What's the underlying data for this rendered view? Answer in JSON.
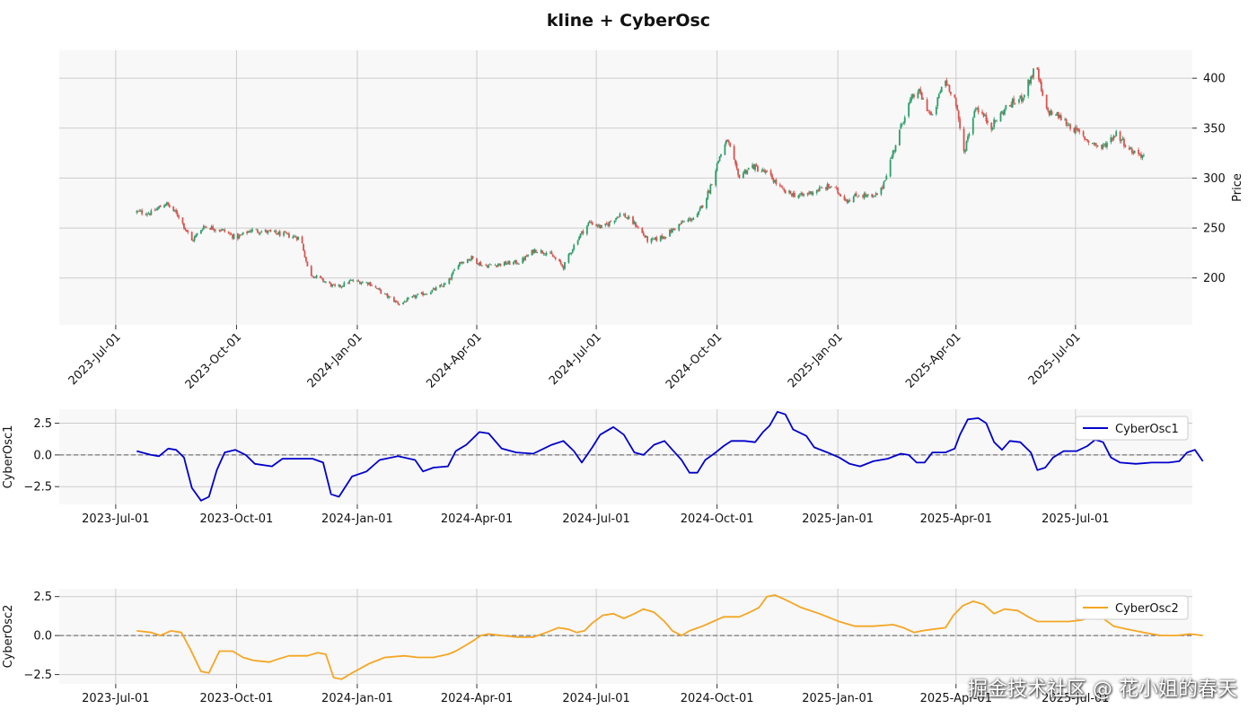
{
  "figure": {
    "title": "kline + CyberOsc",
    "watermark": "掘金技术社区 @ 花小姐的春天"
  },
  "colors": {
    "up": "#2e9e6b",
    "down": "#d9534f",
    "osc1": "#0000cc",
    "osc2": "#f5a623",
    "panel_bg": "#f8f8f8",
    "grid": "#cccccc",
    "zero_line": "#777777"
  },
  "chart_data": [
    {
      "type": "candlestick",
      "panel": "price",
      "ylabel": "Price",
      "ylim": [
        153,
        428
      ],
      "yticks": [
        200,
        250,
        300,
        350,
        400
      ],
      "xlim": [
        "2023-05-19",
        "2025-09-28"
      ],
      "xticks": [
        "2023-Jul-01",
        "2023-Oct-01",
        "2024-Jan-01",
        "2024-Apr-01",
        "2024-Jul-01",
        "2024-Oct-01",
        "2025-Jan-01",
        "2025-Apr-01",
        "2025-Jul-01"
      ],
      "start_date": "2023-07-17",
      "end_date": "2025-08-22",
      "close_anchors": [
        [
          "2023-07-17",
          266
        ],
        [
          "2023-07-28",
          265
        ],
        [
          "2023-08-08",
          275
        ],
        [
          "2023-08-18",
          262
        ],
        [
          "2023-08-28",
          237
        ],
        [
          "2023-09-06",
          252
        ],
        [
          "2023-09-20",
          248
        ],
        [
          "2023-10-01",
          240
        ],
        [
          "2023-10-12",
          248
        ],
        [
          "2023-10-25",
          246
        ],
        [
          "2023-11-08",
          243
        ],
        [
          "2023-11-19",
          240
        ],
        [
          "2023-11-25",
          205
        ],
        [
          "2023-12-05",
          198
        ],
        [
          "2023-12-16",
          190
        ],
        [
          "2023-12-27",
          197
        ],
        [
          "2024-01-10",
          195
        ],
        [
          "2024-01-22",
          183
        ],
        [
          "2024-02-02",
          174
        ],
        [
          "2024-02-15",
          182
        ],
        [
          "2024-02-25",
          186
        ],
        [
          "2024-03-10",
          195
        ],
        [
          "2024-03-18",
          215
        ],
        [
          "2024-03-28",
          220
        ],
        [
          "2024-04-06",
          212
        ],
        [
          "2024-04-20",
          214
        ],
        [
          "2024-05-04",
          216
        ],
        [
          "2024-05-15",
          228
        ],
        [
          "2024-05-26",
          225
        ],
        [
          "2024-06-06",
          211
        ],
        [
          "2024-06-16",
          238
        ],
        [
          "2024-06-26",
          256
        ],
        [
          "2024-07-06",
          250
        ],
        [
          "2024-07-20",
          265
        ],
        [
          "2024-08-01",
          252
        ],
        [
          "2024-08-10",
          236
        ],
        [
          "2024-08-22",
          242
        ],
        [
          "2024-09-04",
          255
        ],
        [
          "2024-09-16",
          262
        ],
        [
          "2024-09-25",
          288
        ],
        [
          "2024-10-03",
          322
        ],
        [
          "2024-10-09",
          338
        ],
        [
          "2024-10-17",
          302
        ],
        [
          "2024-10-28",
          312
        ],
        [
          "2024-11-09",
          304
        ],
        [
          "2024-11-21",
          286
        ],
        [
          "2024-12-04",
          282
        ],
        [
          "2024-12-16",
          288
        ],
        [
          "2024-12-27",
          292
        ],
        [
          "2025-01-08",
          278
        ],
        [
          "2025-01-18",
          284
        ],
        [
          "2025-01-28",
          280
        ],
        [
          "2025-02-03",
          288
        ],
        [
          "2025-02-13",
          330
        ],
        [
          "2025-02-23",
          372
        ],
        [
          "2025-03-03",
          388
        ],
        [
          "2025-03-14",
          360
        ],
        [
          "2025-03-23",
          400
        ],
        [
          "2025-03-31",
          380
        ],
        [
          "2025-04-07",
          326
        ],
        [
          "2025-04-16",
          372
        ],
        [
          "2025-04-28",
          352
        ],
        [
          "2025-05-10",
          372
        ],
        [
          "2025-05-21",
          380
        ],
        [
          "2025-06-01",
          412
        ],
        [
          "2025-06-08",
          368
        ],
        [
          "2025-06-18",
          362
        ],
        [
          "2025-06-29",
          350
        ],
        [
          "2025-07-10",
          338
        ],
        [
          "2025-07-21",
          330
        ],
        [
          "2025-08-01",
          345
        ],
        [
          "2025-08-12",
          328
        ],
        [
          "2025-08-22",
          322
        ]
      ]
    },
    {
      "type": "line",
      "panel": "osc1",
      "ylabel": "CyberOsc1",
      "legend": "CyberOsc1",
      "legend_position": "top-right",
      "ylim": [
        -3.9,
        3.6
      ],
      "yticks": [
        -2.5,
        0.0,
        2.5
      ],
      "ytick_labels": [
        "−2.5",
        "0.0",
        "2.5"
      ],
      "zero_line": true,
      "xticks": [
        "2023-Jul-01",
        "2023-Oct-01",
        "2024-Jan-01",
        "2024-Apr-01",
        "2024-Jul-01",
        "2024-Oct-01",
        "2025-Jan-01",
        "2025-Apr-01",
        "2025-Jul-01"
      ],
      "series_anchors": [
        [
          "2023-07-17",
          0.3
        ],
        [
          "2023-07-28",
          0.0
        ],
        [
          "2023-08-03",
          -0.1
        ],
        [
          "2023-08-10",
          0.5
        ],
        [
          "2023-08-16",
          0.4
        ],
        [
          "2023-08-22",
          -0.2
        ],
        [
          "2023-08-28",
          -2.6
        ],
        [
          "2023-09-04",
          -3.6
        ],
        [
          "2023-09-10",
          -3.3
        ],
        [
          "2023-09-16",
          -1.2
        ],
        [
          "2023-09-22",
          0.2
        ],
        [
          "2023-09-30",
          0.4
        ],
        [
          "2023-10-08",
          0.0
        ],
        [
          "2023-10-15",
          -0.7
        ],
        [
          "2023-10-28",
          -0.9
        ],
        [
          "2023-11-05",
          -0.3
        ],
        [
          "2023-11-15",
          -0.3
        ],
        [
          "2023-11-28",
          -0.3
        ],
        [
          "2023-12-06",
          -0.6
        ],
        [
          "2023-12-12",
          -3.1
        ],
        [
          "2023-12-18",
          -3.3
        ],
        [
          "2023-12-28",
          -1.7
        ],
        [
          "2024-01-08",
          -1.3
        ],
        [
          "2024-01-18",
          -0.4
        ],
        [
          "2024-02-01",
          -0.1
        ],
        [
          "2024-02-14",
          -0.4
        ],
        [
          "2024-02-20",
          -1.3
        ],
        [
          "2024-02-28",
          -1.0
        ],
        [
          "2024-03-10",
          -0.9
        ],
        [
          "2024-03-16",
          0.3
        ],
        [
          "2024-03-24",
          0.8
        ],
        [
          "2024-03-30",
          1.4
        ],
        [
          "2024-04-03",
          1.8
        ],
        [
          "2024-04-10",
          1.7
        ],
        [
          "2024-04-20",
          0.5
        ],
        [
          "2024-05-01",
          0.2
        ],
        [
          "2024-05-14",
          0.1
        ],
        [
          "2024-05-28",
          0.8
        ],
        [
          "2024-06-06",
          1.1
        ],
        [
          "2024-06-14",
          0.3
        ],
        [
          "2024-06-20",
          -0.6
        ],
        [
          "2024-06-28",
          0.6
        ],
        [
          "2024-07-04",
          1.6
        ],
        [
          "2024-07-14",
          2.2
        ],
        [
          "2024-07-22",
          1.6
        ],
        [
          "2024-07-30",
          0.2
        ],
        [
          "2024-08-06",
          0.0
        ],
        [
          "2024-08-14",
          0.8
        ],
        [
          "2024-08-22",
          1.1
        ],
        [
          "2024-08-28",
          0.4
        ],
        [
          "2024-09-04",
          -0.4
        ],
        [
          "2024-09-10",
          -1.4
        ],
        [
          "2024-09-16",
          -1.4
        ],
        [
          "2024-09-22",
          -0.4
        ],
        [
          "2024-09-30",
          0.2
        ],
        [
          "2024-10-06",
          0.7
        ],
        [
          "2024-10-12",
          1.1
        ],
        [
          "2024-10-22",
          1.1
        ],
        [
          "2024-10-30",
          1.0
        ],
        [
          "2024-11-05",
          1.8
        ],
        [
          "2024-11-10",
          2.3
        ],
        [
          "2024-11-16",
          3.4
        ],
        [
          "2024-11-22",
          3.2
        ],
        [
          "2024-11-28",
          2.0
        ],
        [
          "2024-12-08",
          1.5
        ],
        [
          "2024-12-14",
          0.6
        ],
        [
          "2024-12-24",
          0.2
        ],
        [
          "2025-01-02",
          -0.2
        ],
        [
          "2025-01-10",
          -0.7
        ],
        [
          "2025-01-18",
          -0.9
        ],
        [
          "2025-01-28",
          -0.5
        ],
        [
          "2025-02-08",
          -0.3
        ],
        [
          "2025-02-18",
          0.1
        ],
        [
          "2025-02-24",
          0.0
        ],
        [
          "2025-03-02",
          -0.6
        ],
        [
          "2025-03-08",
          -0.6
        ],
        [
          "2025-03-14",
          0.2
        ],
        [
          "2025-03-24",
          0.2
        ],
        [
          "2025-03-31",
          0.5
        ],
        [
          "2025-04-04",
          1.6
        ],
        [
          "2025-04-10",
          2.8
        ],
        [
          "2025-04-18",
          2.9
        ],
        [
          "2025-04-24",
          2.5
        ],
        [
          "2025-04-30",
          1.0
        ],
        [
          "2025-05-06",
          0.4
        ],
        [
          "2025-05-12",
          1.1
        ],
        [
          "2025-05-20",
          1.0
        ],
        [
          "2025-05-28",
          0.2
        ],
        [
          "2025-06-02",
          -1.2
        ],
        [
          "2025-06-08",
          -1.0
        ],
        [
          "2025-06-14",
          -0.2
        ],
        [
          "2025-06-22",
          0.3
        ],
        [
          "2025-07-02",
          0.3
        ],
        [
          "2025-07-10",
          0.7
        ],
        [
          "2025-07-16",
          1.2
        ],
        [
          "2025-07-22",
          1.0
        ],
        [
          "2025-07-28",
          -0.2
        ],
        [
          "2025-08-04",
          -0.6
        ],
        [
          "2025-08-16",
          -0.7
        ],
        [
          "2025-08-28",
          -0.6
        ],
        [
          "2025-09-10",
          -0.6
        ],
        [
          "2025-09-18",
          -0.5
        ],
        [
          "2025-09-24",
          0.2
        ],
        [
          "2025-09-30",
          0.4
        ],
        [
          "2025-10-06",
          -0.5
        ]
      ]
    },
    {
      "type": "line",
      "panel": "osc2",
      "ylabel": "CyberOsc2",
      "legend": "CyberOsc2",
      "legend_position": "top-right",
      "ylim": [
        -3.1,
        3.0
      ],
      "yticks": [
        -2.5,
        0.0,
        2.5
      ],
      "ytick_labels": [
        "−2.5",
        "0.0",
        "2.5"
      ],
      "zero_line": true,
      "xticks": [
        "2023-Jul-01",
        "2023-Oct-01",
        "2024-Jan-01",
        "2024-Apr-01",
        "2024-Jul-01",
        "2024-Oct-01",
        "2025-Jan-01",
        "2025-Apr-01",
        "2025-Jul-01"
      ],
      "series_anchors": [
        [
          "2023-07-17",
          0.3
        ],
        [
          "2023-07-28",
          0.2
        ],
        [
          "2023-08-04",
          0.0
        ],
        [
          "2023-08-12",
          0.3
        ],
        [
          "2023-08-20",
          0.2
        ],
        [
          "2023-08-27",
          -0.9
        ],
        [
          "2023-09-04",
          -2.3
        ],
        [
          "2023-09-10",
          -2.4
        ],
        [
          "2023-09-18",
          -1.0
        ],
        [
          "2023-09-28",
          -1.0
        ],
        [
          "2023-10-06",
          -1.4
        ],
        [
          "2023-10-14",
          -1.6
        ],
        [
          "2023-10-26",
          -1.7
        ],
        [
          "2023-11-02",
          -1.5
        ],
        [
          "2023-11-10",
          -1.3
        ],
        [
          "2023-11-24",
          -1.3
        ],
        [
          "2023-12-02",
          -1.1
        ],
        [
          "2023-12-08",
          -1.2
        ],
        [
          "2023-12-14",
          -2.7
        ],
        [
          "2023-12-20",
          -2.8
        ],
        [
          "2023-12-28",
          -2.4
        ],
        [
          "2024-01-10",
          -1.8
        ],
        [
          "2024-01-22",
          -1.4
        ],
        [
          "2024-02-06",
          -1.3
        ],
        [
          "2024-02-16",
          -1.4
        ],
        [
          "2024-02-28",
          -1.4
        ],
        [
          "2024-03-10",
          -1.2
        ],
        [
          "2024-03-16",
          -1.0
        ],
        [
          "2024-03-24",
          -0.6
        ],
        [
          "2024-03-30",
          -0.3
        ],
        [
          "2024-04-04",
          0.0
        ],
        [
          "2024-04-10",
          0.1
        ],
        [
          "2024-04-20",
          0.0
        ],
        [
          "2024-05-02",
          -0.1
        ],
        [
          "2024-05-14",
          -0.1
        ],
        [
          "2024-05-24",
          0.2
        ],
        [
          "2024-06-02",
          0.5
        ],
        [
          "2024-06-10",
          0.4
        ],
        [
          "2024-06-16",
          0.2
        ],
        [
          "2024-06-22",
          0.3
        ],
        [
          "2024-06-28",
          0.8
        ],
        [
          "2024-07-06",
          1.3
        ],
        [
          "2024-07-14",
          1.4
        ],
        [
          "2024-07-22",
          1.1
        ],
        [
          "2024-07-30",
          1.4
        ],
        [
          "2024-08-06",
          1.7
        ],
        [
          "2024-08-14",
          1.5
        ],
        [
          "2024-08-22",
          0.9
        ],
        [
          "2024-08-28",
          0.3
        ],
        [
          "2024-09-04",
          0.0
        ],
        [
          "2024-09-10",
          0.3
        ],
        [
          "2024-09-20",
          0.6
        ],
        [
          "2024-09-28",
          0.9
        ],
        [
          "2024-10-06",
          1.2
        ],
        [
          "2024-10-18",
          1.2
        ],
        [
          "2024-10-26",
          1.5
        ],
        [
          "2024-11-02",
          1.8
        ],
        [
          "2024-11-08",
          2.5
        ],
        [
          "2024-11-14",
          2.6
        ],
        [
          "2024-11-22",
          2.3
        ],
        [
          "2024-12-04",
          1.8
        ],
        [
          "2024-12-18",
          1.4
        ],
        [
          "2025-01-02",
          0.9
        ],
        [
          "2025-01-14",
          0.6
        ],
        [
          "2025-01-28",
          0.6
        ],
        [
          "2025-02-12",
          0.7
        ],
        [
          "2025-02-20",
          0.5
        ],
        [
          "2025-02-28",
          0.2
        ],
        [
          "2025-03-06",
          0.3
        ],
        [
          "2025-03-14",
          0.4
        ],
        [
          "2025-03-24",
          0.5
        ],
        [
          "2025-03-30",
          1.3
        ],
        [
          "2025-04-06",
          1.9
        ],
        [
          "2025-04-14",
          2.2
        ],
        [
          "2025-04-22",
          2.0
        ],
        [
          "2025-04-30",
          1.4
        ],
        [
          "2025-05-08",
          1.7
        ],
        [
          "2025-05-18",
          1.6
        ],
        [
          "2025-05-26",
          1.2
        ],
        [
          "2025-06-02",
          0.9
        ],
        [
          "2025-06-14",
          0.9
        ],
        [
          "2025-06-26",
          0.9
        ],
        [
          "2025-07-06",
          1.0
        ],
        [
          "2025-07-14",
          1.2
        ],
        [
          "2025-07-22",
          1.1
        ],
        [
          "2025-07-30",
          0.6
        ],
        [
          "2025-08-10",
          0.4
        ],
        [
          "2025-08-22",
          0.2
        ],
        [
          "2025-09-04",
          0.0
        ],
        [
          "2025-09-16",
          0.0
        ],
        [
          "2025-09-26",
          0.1
        ],
        [
          "2025-10-06",
          0.0
        ]
      ]
    }
  ]
}
